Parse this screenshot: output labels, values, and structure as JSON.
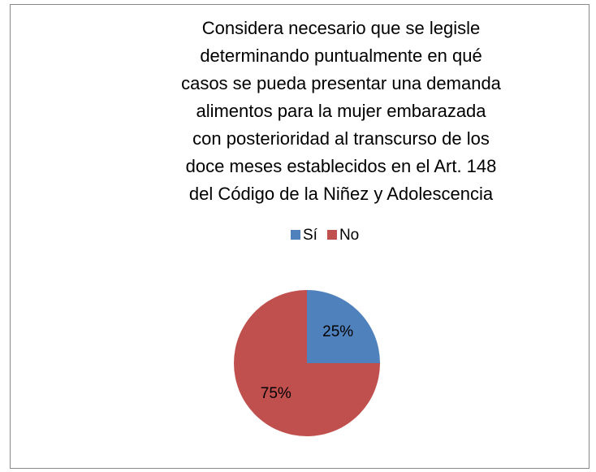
{
  "chart_data": {
    "type": "pie",
    "title": "Considera necesario que se legisle determinando puntualmente en qué casos se pueda presentar una demanda alimentos para la mujer embarazada con posterioridad al transcurso de los doce meses establecidos en el Art. 148 del Código de la Niñez y Adolescencia",
    "categories": [
      "Sí",
      "No"
    ],
    "values": [
      25,
      75
    ],
    "value_labels": [
      "25%",
      "75%"
    ],
    "colors": [
      "#4f81bd",
      "#c0504d"
    ],
    "legend": "top"
  }
}
